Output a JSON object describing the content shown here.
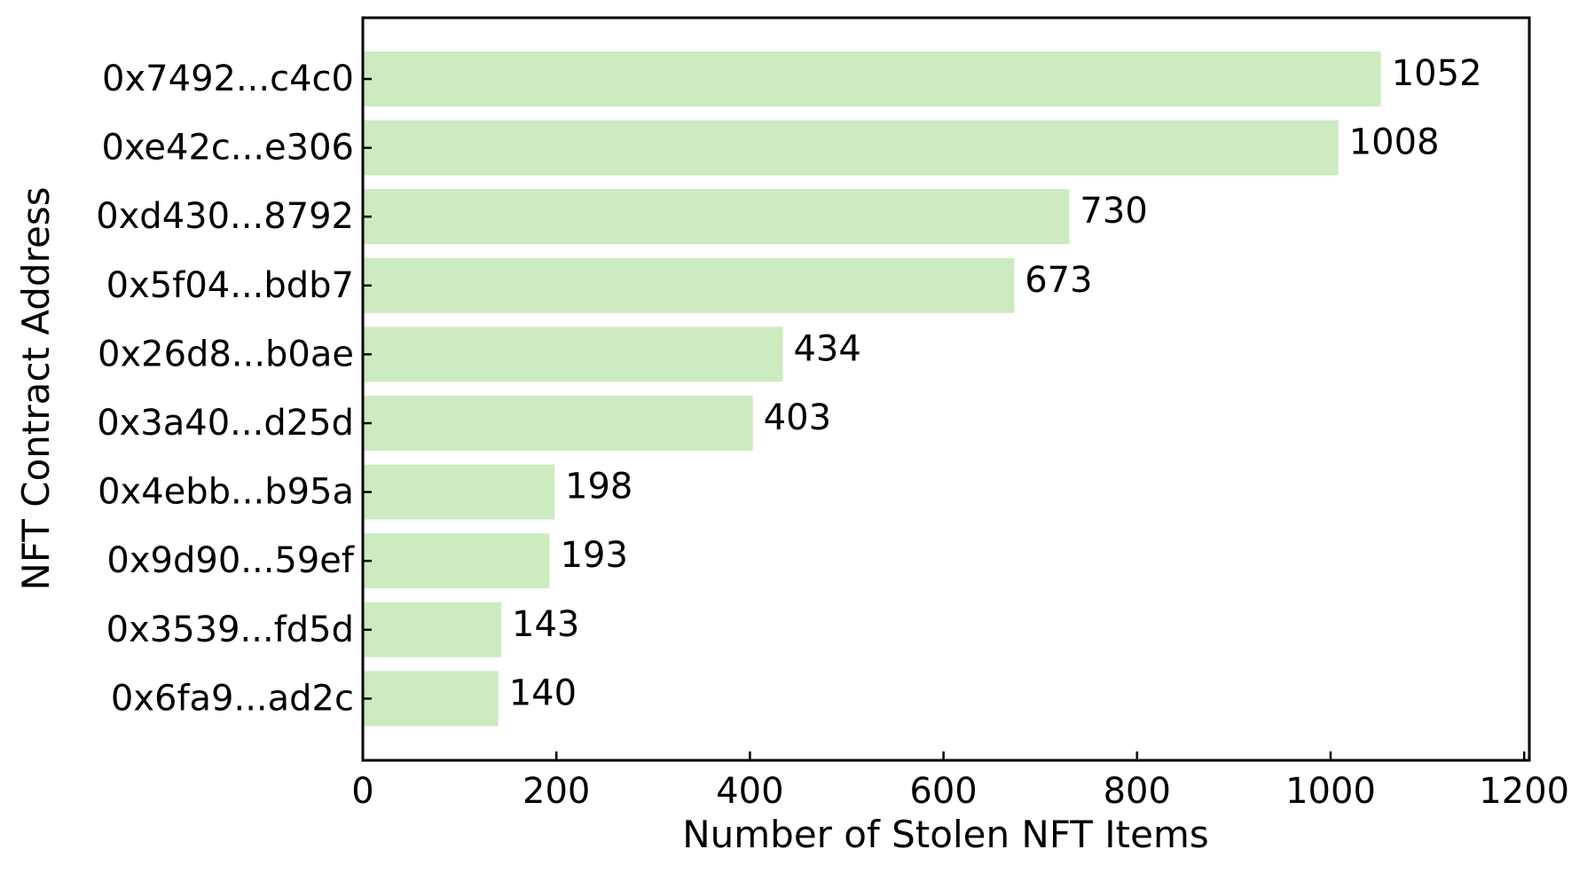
{
  "chart_data": {
    "type": "bar",
    "orientation": "horizontal",
    "title": "",
    "xlabel": "Number of Stolen NFT Items",
    "ylabel": "NFT Contract Address",
    "categories": [
      "0x7492...c4c0",
      "0xe42c...e306",
      "0xd430...8792",
      "0x5f04...bdb7",
      "0x26d8...b0ae",
      "0x3a40...d25d",
      "0x4ebb...b95a",
      "0x9d90...59ef",
      "0x3539...fd5d",
      "0x6fa9...ad2c"
    ],
    "values": [
      1052,
      1008,
      730,
      673,
      434,
      403,
      198,
      193,
      143,
      140
    ],
    "value_labels": [
      "1052",
      "1008",
      "730",
      "673",
      "434",
      "403",
      "198",
      "193",
      "143",
      "140"
    ],
    "xticks": [
      0,
      200,
      400,
      600,
      800,
      1000,
      1200
    ],
    "xtick_labels": [
      "0",
      "200",
      "400",
      "600",
      "800",
      "1000",
      "1200"
    ],
    "xlim": [
      0,
      1210
    ],
    "bar_color": "#ccebc0",
    "grid": false,
    "legend": "none"
  }
}
